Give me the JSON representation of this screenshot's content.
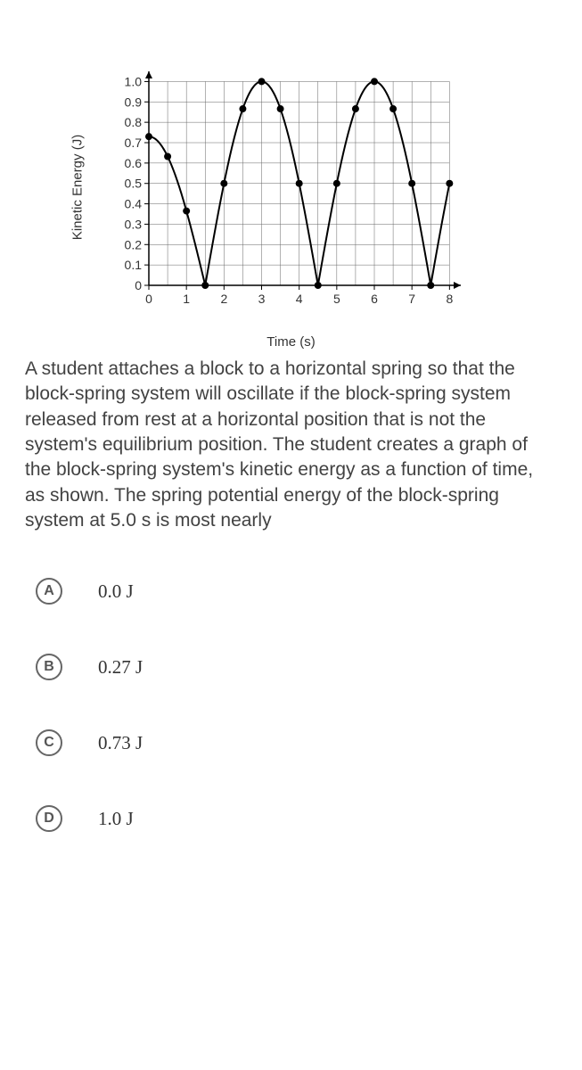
{
  "chart": {
    "type": "line",
    "ylabel": "Kinetic Energy (J)",
    "xlabel": "Time (s)",
    "label_fontsize": 15,
    "xlim": [
      0,
      8.3
    ],
    "ylim": [
      0,
      1.05
    ],
    "xtick_labels": [
      "0",
      "1",
      "2",
      "3",
      "4",
      "5",
      "6",
      "7",
      "8"
    ],
    "ytick_labels": [
      "0",
      "0.1",
      "0.2",
      "0.3",
      "0.4",
      "0.5",
      "0.6",
      "0.7",
      "0.8",
      "0.9",
      "1.0"
    ],
    "xtick_step": 1,
    "xminor_step": 0.5,
    "ytick_step": 0.1,
    "period": 3.0,
    "amplitude": 1.0,
    "phase_start_value": 0.73,
    "line_color": "#000000",
    "line_width": 2,
    "marker": "circle",
    "marker_size": 4,
    "marker_color": "#000000",
    "marker_x_positions": [
      0,
      0.5,
      1,
      1.5,
      2,
      2.5,
      3,
      3.5,
      4,
      4.5,
      5,
      5.5,
      6,
      6.5,
      7,
      7.5,
      8
    ],
    "axis_color": "#000000",
    "grid_color": "#666666",
    "grid_width": 0.5,
    "background_color": "#ffffff",
    "tick_font_size": 14
  },
  "question": {
    "text": "A student attaches a block to a horizontal spring so that the block-spring system will oscillate if the block-spring system released from rest at a horizontal position that is not the system's equilibrium position. The student creates a graph of the block-spring system's kinetic energy as a function of time, as shown. The spring potential energy of the block-spring system at 5.0 s is most nearly"
  },
  "choices": [
    {
      "letter": "A",
      "text": "0.0 J"
    },
    {
      "letter": "B",
      "text": "0.27 J"
    },
    {
      "letter": "C",
      "text": "0.73 J"
    },
    {
      "letter": "D",
      "text": "1.0 J"
    }
  ]
}
